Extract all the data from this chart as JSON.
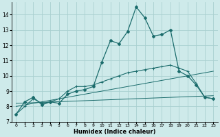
{
  "xlabel": "Humidex (Indice chaleur)",
  "bg_color": "#ceeaea",
  "grid_color": "#aad0d0",
  "line_color": "#1a6b6b",
  "xlim": [
    -0.5,
    23.5
  ],
  "ylim": [
    7,
    14.8
  ],
  "yticks": [
    7,
    8,
    9,
    10,
    11,
    12,
    13,
    14
  ],
  "xticks": [
    0,
    1,
    2,
    3,
    4,
    5,
    6,
    7,
    8,
    9,
    10,
    11,
    12,
    13,
    14,
    15,
    16,
    17,
    18,
    19,
    20,
    21,
    22,
    23
  ],
  "curve_main_x": [
    0,
    1,
    2,
    3,
    4,
    5,
    6,
    7,
    8,
    9,
    10,
    11,
    12,
    13,
    14,
    15,
    16,
    17,
    18,
    19,
    20,
    21,
    22,
    23
  ],
  "curve_main_y": [
    7.5,
    8.3,
    8.6,
    8.1,
    8.3,
    8.2,
    8.8,
    9.0,
    9.1,
    9.3,
    10.9,
    12.3,
    12.1,
    12.9,
    14.5,
    13.8,
    12.6,
    12.7,
    13.0,
    10.3,
    10.0,
    9.4,
    8.6,
    8.5
  ],
  "curve_smooth_x": [
    0,
    1,
    2,
    3,
    4,
    5,
    6,
    7,
    8,
    9,
    10,
    11,
    12,
    13,
    14,
    15,
    16,
    17,
    18,
    19,
    20,
    21,
    22,
    23
  ],
  "curve_smooth_y": [
    7.5,
    8.0,
    8.5,
    8.2,
    8.3,
    8.5,
    9.0,
    9.3,
    9.3,
    9.4,
    9.6,
    9.8,
    10.0,
    10.2,
    10.3,
    10.4,
    10.5,
    10.6,
    10.7,
    10.5,
    10.3,
    9.5,
    8.6,
    8.5
  ],
  "line1_x": [
    0,
    23
  ],
  "line1_y": [
    8.0,
    10.3
  ],
  "line2_x": [
    0,
    23
  ],
  "line2_y": [
    8.2,
    8.7
  ]
}
